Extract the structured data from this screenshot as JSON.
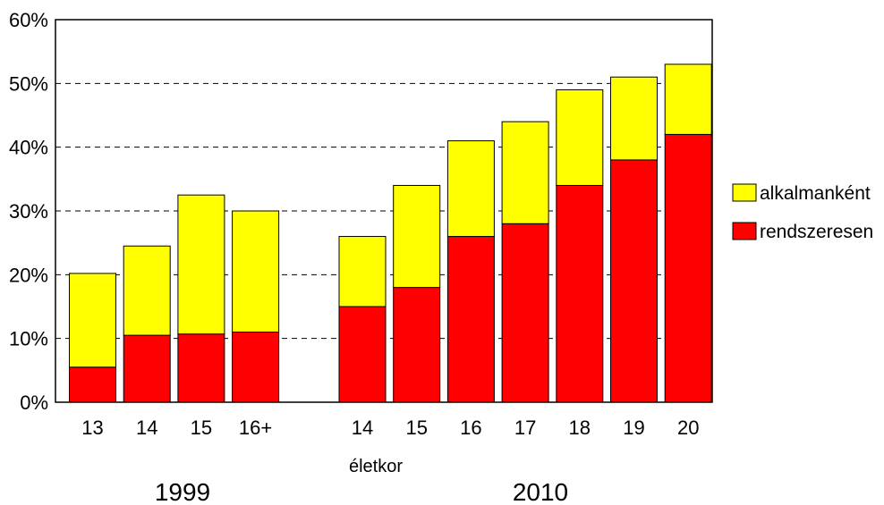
{
  "chart_data": {
    "type": "bar",
    "stacked": true,
    "xlabel": "életkor",
    "ylabel": "",
    "ylim": [
      0,
      60
    ],
    "yticks": [
      "0%",
      "10%",
      "20%",
      "30%",
      "40%",
      "50%",
      "60%"
    ],
    "grid": "horizontal dashed",
    "legend_position": "right",
    "groups": [
      {
        "name": "1999",
        "categories": [
          "13",
          "14",
          "15",
          "16+"
        ]
      },
      {
        "name": "2010",
        "categories": [
          "14",
          "15",
          "16",
          "17",
          "18",
          "19",
          "20"
        ]
      }
    ],
    "series": [
      {
        "name": "rendszeresen",
        "color": "#ff0000",
        "values": [
          5.5,
          10.5,
          10.7,
          11,
          15,
          18,
          26,
          28,
          34,
          38,
          42
        ]
      },
      {
        "name": "alkalmanként",
        "color": "#ffff00",
        "values": [
          14.7,
          14,
          21.8,
          19,
          11,
          16,
          15,
          16,
          15,
          13,
          11
        ]
      }
    ]
  }
}
